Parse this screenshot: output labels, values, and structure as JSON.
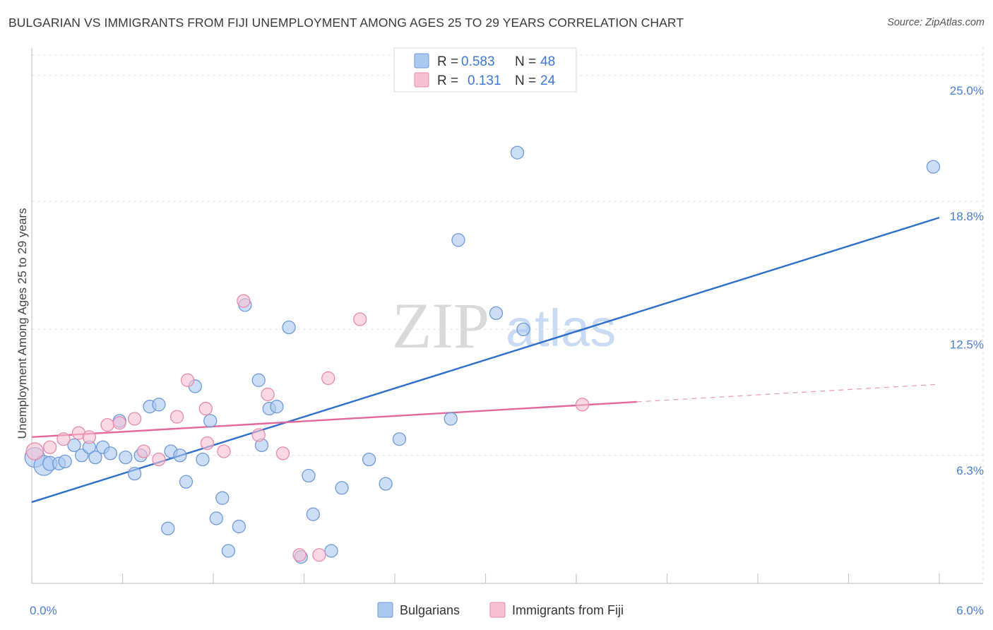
{
  "header": {
    "title": "BULGARIAN VS IMMIGRANTS FROM FIJI UNEMPLOYMENT AMONG AGES 25 TO 29 YEARS CORRELATION CHART",
    "source": "Source: ZipAtlas.com"
  },
  "watermark": {
    "zip": "ZIP",
    "atlas": "atlas"
  },
  "colors": {
    "blue_fill": "#aac8f0",
    "blue_stroke": "#6f9ad8",
    "blue_line": "#2f6fcc",
    "pink_fill": "#f7c0d2",
    "pink_stroke": "#e98aab",
    "pink_line": "#e2689a",
    "grid": "#dde3ea",
    "tick_text": "#4a7fd0"
  },
  "legend": {
    "rows": [
      {
        "r_label": "R =",
        "r_value": "0.583",
        "n_label": "N =",
        "n_value": "48"
      },
      {
        "r_label": "R =",
        "r_value": "0.131",
        "n_label": "N =",
        "n_value": "24"
      }
    ]
  },
  "chart_data": {
    "type": "scatter",
    "title": "BULGARIAN VS IMMIGRANTS FROM FIJI UNEMPLOYMENT AMONG AGES 25 TO 29 YEARS CORRELATION CHART",
    "xlabel": "",
    "ylabel": "Unemployment Among Ages 25 to 29 years",
    "xlim": [
      0.0,
      6.0
    ],
    "ylim": [
      0.0,
      26.0
    ],
    "x_tick_labels": [
      "0.0%",
      "6.0%"
    ],
    "y_ticks": [
      6.3,
      12.5,
      18.8,
      25.0
    ],
    "y_tick_labels": [
      "6.3%",
      "12.5%",
      "18.8%",
      "25.0%"
    ],
    "grid": true,
    "series": [
      {
        "name": "Bulgarians",
        "r": 0.583,
        "n": 48,
        "trend": {
          "x0": 0.0,
          "y0": 4.0,
          "x1": 6.0,
          "y1": 18.0,
          "dashed_from": null
        },
        "points": [
          [
            0.02,
            6.2,
            14
          ],
          [
            0.08,
            5.8,
            14
          ],
          [
            0.12,
            5.9,
            10
          ],
          [
            0.18,
            5.9,
            9
          ],
          [
            0.22,
            6.0,
            9
          ],
          [
            0.28,
            6.8,
            9
          ],
          [
            0.33,
            6.3,
            9
          ],
          [
            0.38,
            6.7,
            9
          ],
          [
            0.42,
            6.2,
            9
          ],
          [
            0.47,
            6.7,
            9
          ],
          [
            0.52,
            6.4,
            9
          ],
          [
            0.58,
            8.0,
            9
          ],
          [
            0.62,
            6.2,
            9
          ],
          [
            0.68,
            5.4,
            9
          ],
          [
            0.72,
            6.3,
            9
          ],
          [
            0.78,
            8.7,
            9
          ],
          [
            0.84,
            8.8,
            9
          ],
          [
            0.9,
            2.7,
            9
          ],
          [
            0.92,
            6.5,
            9
          ],
          [
            0.98,
            6.3,
            9
          ],
          [
            1.02,
            5.0,
            9
          ],
          [
            1.08,
            9.7,
            9
          ],
          [
            1.13,
            6.1,
            9
          ],
          [
            1.18,
            8.0,
            9
          ],
          [
            1.22,
            3.2,
            9
          ],
          [
            1.26,
            4.2,
            9
          ],
          [
            1.3,
            1.6,
            9
          ],
          [
            1.37,
            2.8,
            9
          ],
          [
            1.41,
            13.7,
            9
          ],
          [
            1.5,
            10.0,
            9
          ],
          [
            1.52,
            6.8,
            9
          ],
          [
            1.57,
            8.6,
            9
          ],
          [
            1.62,
            8.7,
            9
          ],
          [
            1.7,
            12.6,
            9
          ],
          [
            1.78,
            1.3,
            9
          ],
          [
            1.83,
            5.3,
            9
          ],
          [
            1.86,
            3.4,
            9
          ],
          [
            1.98,
            1.6,
            9
          ],
          [
            2.05,
            4.7,
            9
          ],
          [
            2.23,
            6.1,
            9
          ],
          [
            2.34,
            4.9,
            9
          ],
          [
            2.43,
            7.1,
            9
          ],
          [
            2.77,
            8.1,
            9
          ],
          [
            2.82,
            16.9,
            9
          ],
          [
            3.07,
            13.3,
            9
          ],
          [
            3.21,
            21.2,
            9
          ],
          [
            3.25,
            12.5,
            9
          ],
          [
            5.96,
            20.5,
            9
          ]
        ]
      },
      {
        "name": "Immigrants from Fiji",
        "r": 0.131,
        "n": 24,
        "trend": {
          "x0": 0.0,
          "y0": 7.2,
          "x1": 6.0,
          "y1": 9.8,
          "dashed_from": 4.0
        },
        "points": [
          [
            0.02,
            6.5,
            12
          ],
          [
            0.12,
            6.7,
            9
          ],
          [
            0.21,
            7.1,
            9
          ],
          [
            0.31,
            7.4,
            9
          ],
          [
            0.38,
            7.2,
            9
          ],
          [
            0.5,
            7.8,
            9
          ],
          [
            0.58,
            7.9,
            9
          ],
          [
            0.68,
            8.1,
            9
          ],
          [
            0.74,
            6.5,
            9
          ],
          [
            0.84,
            6.1,
            9
          ],
          [
            0.96,
            8.2,
            9
          ],
          [
            1.03,
            10.0,
            9
          ],
          [
            1.15,
            8.6,
            9
          ],
          [
            1.16,
            6.9,
            9
          ],
          [
            1.27,
            6.5,
            9
          ],
          [
            1.4,
            13.9,
            9
          ],
          [
            1.5,
            7.3,
            9
          ],
          [
            1.56,
            9.3,
            9
          ],
          [
            1.66,
            6.4,
            9
          ],
          [
            1.77,
            1.4,
            9
          ],
          [
            1.9,
            1.4,
            9
          ],
          [
            1.96,
            10.1,
            9
          ],
          [
            2.17,
            13.0,
            9
          ],
          [
            3.64,
            8.8,
            9
          ]
        ]
      }
    ]
  }
}
